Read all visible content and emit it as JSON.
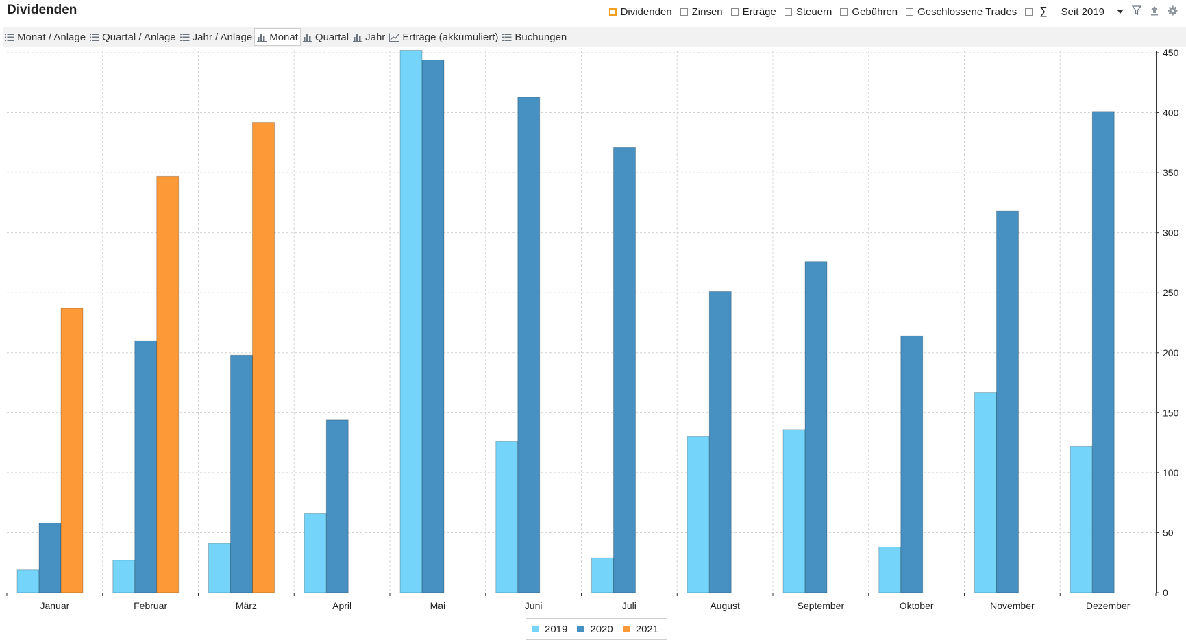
{
  "header": {
    "title": "Dividenden",
    "filters": [
      {
        "label": "Dividenden",
        "checked": true
      },
      {
        "label": "Zinsen",
        "checked": false
      },
      {
        "label": "Erträge",
        "checked": false
      },
      {
        "label": "Steuern",
        "checked": false
      },
      {
        "label": "Gebühren",
        "checked": false
      },
      {
        "label": "Geschlossene Trades",
        "checked": false
      }
    ],
    "sum_symbol": "∑",
    "period": "Seit 2019",
    "icons": [
      "filter-icon",
      "export-icon",
      "gear-icon"
    ]
  },
  "views": [
    {
      "label": "Monat / Anlage",
      "icon": "list-icon"
    },
    {
      "label": "Quartal / Anlage",
      "icon": "list-icon"
    },
    {
      "label": "Jahr / Anlage",
      "icon": "list-icon"
    },
    {
      "label": "Monat",
      "icon": "bar-chart-icon",
      "active": true
    },
    {
      "label": "Quartal",
      "icon": "bar-chart-icon"
    },
    {
      "label": "Jahr",
      "icon": "bar-chart-icon"
    },
    {
      "label": "Erträge (akkumuliert)",
      "icon": "line-chart-icon"
    },
    {
      "label": "Buchungen",
      "icon": "list-icon"
    }
  ],
  "chart_data": {
    "type": "bar",
    "categories": [
      "Januar",
      "Februar",
      "März",
      "April",
      "Mai",
      "Juni",
      "Juli",
      "August",
      "September",
      "Oktober",
      "November",
      "Dezember"
    ],
    "series": [
      {
        "name": "2019",
        "color": "#74d4f9",
        "values": [
          19,
          27,
          41,
          66,
          452,
          126,
          29,
          130,
          136,
          38,
          167,
          122
        ]
      },
      {
        "name": "2020",
        "color": "#4690c2",
        "values": [
          58,
          210,
          198,
          144,
          444,
          413,
          371,
          251,
          276,
          214,
          318,
          401
        ]
      },
      {
        "name": "2021",
        "color": "#fd9937",
        "values": [
          237,
          347,
          392,
          null,
          null,
          null,
          null,
          null,
          null,
          null,
          null,
          null
        ]
      }
    ],
    "ylim": [
      0,
      450
    ],
    "yticks": [
      0,
      50,
      100,
      150,
      200,
      250,
      300,
      350,
      400,
      450
    ],
    "y_axis_side": "right",
    "grid": true,
    "legend_position": "bottom-center"
  }
}
